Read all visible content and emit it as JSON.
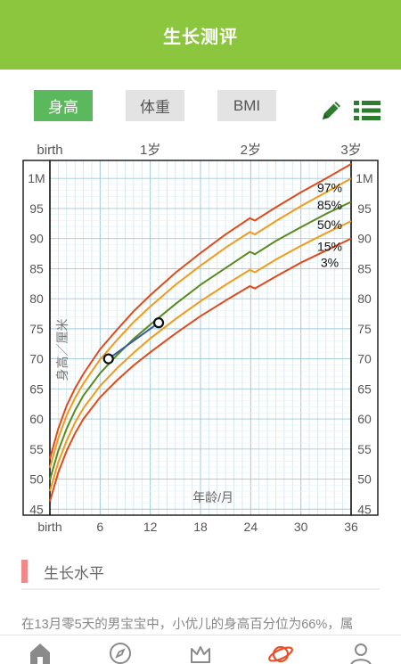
{
  "app": {
    "title": "生长测评"
  },
  "tabs": [
    {
      "label": "身高",
      "active": true
    },
    {
      "label": "体重",
      "active": false
    },
    {
      "label": "BMI",
      "active": false
    }
  ],
  "icons": {
    "edit": "pencil-icon",
    "list": "list-icon"
  },
  "colors": {
    "brand": "#8cc63f",
    "active_tab": "#5cb85c",
    "p97": "#e04a1a",
    "p85": "#f29a1a",
    "p50": "#5a8a1e",
    "p15": "#f29a1a",
    "p3": "#e04a1a",
    "child_line": "#3a5aa8",
    "accent_bar": "#f08a8a"
  },
  "chart_data": {
    "type": "line",
    "ylabel": "身高／厘米",
    "xlabel": "年龄/月",
    "top_ticks": [
      "birth",
      "1岁",
      "2岁",
      "3岁"
    ],
    "bottom_ticks": [
      "birth",
      "6",
      "12",
      "18",
      "24",
      "30",
      "36"
    ],
    "y_tick_labels": [
      "1M",
      "95",
      "90",
      "85",
      "80",
      "75",
      "70",
      "65",
      "60",
      "55",
      "50",
      "45"
    ],
    "xlim": [
      0,
      36
    ],
    "ylim": [
      44,
      103
    ],
    "grid": true,
    "series": [
      {
        "name": "97%",
        "x": [
          0,
          1,
          2,
          3,
          4,
          6,
          8,
          10,
          12,
          15,
          18,
          21,
          23.9,
          24.5,
          27,
          30,
          33,
          36
        ],
        "y": [
          53.4,
          58.4,
          62.2,
          65.1,
          67.5,
          71.6,
          74.8,
          77.9,
          80.6,
          84.3,
          87.6,
          90.7,
          93.4,
          93.0,
          95.2,
          97.7,
          100.0,
          102.4
        ]
      },
      {
        "name": "85%",
        "x": [
          0,
          1,
          2,
          3,
          4,
          6,
          8,
          10,
          12,
          15,
          18,
          21,
          23.9,
          24.5,
          27,
          30,
          33,
          36
        ],
        "y": [
          51.9,
          56.8,
          60.6,
          63.5,
          65.9,
          69.9,
          73.1,
          76.1,
          78.7,
          82.3,
          85.5,
          88.5,
          91.1,
          90.7,
          92.9,
          95.4,
          97.7,
          100.0
        ]
      },
      {
        "name": "50%",
        "x": [
          0,
          1,
          2,
          3,
          4,
          6,
          8,
          10,
          12,
          15,
          18,
          21,
          23.9,
          24.5,
          27,
          30,
          33,
          36
        ],
        "y": [
          49.9,
          54.7,
          58.4,
          61.4,
          63.9,
          67.6,
          70.6,
          73.3,
          75.7,
          79.1,
          82.3,
          85.1,
          87.8,
          87.4,
          89.6,
          91.9,
          94.1,
          96.1
        ]
      },
      {
        "name": "15%",
        "x": [
          0,
          1,
          2,
          3,
          4,
          6,
          8,
          10,
          12,
          15,
          18,
          21,
          23.9,
          24.5,
          27,
          30,
          33,
          36
        ],
        "y": [
          48.0,
          52.8,
          56.4,
          59.4,
          61.8,
          65.5,
          68.4,
          71.0,
          73.4,
          76.6,
          79.6,
          82.3,
          84.8,
          84.4,
          86.5,
          88.8,
          90.9,
          92.9
        ]
      },
      {
        "name": "3%",
        "x": [
          0,
          1,
          2,
          3,
          4,
          6,
          8,
          10,
          12,
          15,
          18,
          21,
          23.9,
          24.5,
          27,
          30,
          33,
          36
        ],
        "y": [
          46.3,
          51.1,
          54.7,
          57.6,
          60.0,
          63.6,
          66.4,
          68.9,
          71.1,
          74.2,
          77.1,
          79.7,
          82.1,
          81.7,
          83.7,
          86.0,
          88.0,
          90.0
        ]
      },
      {
        "name": "",
        "x": [
          7,
          13
        ],
        "y": [
          70.0,
          76.0
        ]
      }
    ]
  },
  "section": {
    "title": "生长水平"
  },
  "summary": {
    "text": "在13月零5天的男宝宝中，小优儿的身高百分位为66%，属"
  },
  "bottom_nav": [
    {
      "icon": "home-icon"
    },
    {
      "icon": "compass-icon"
    },
    {
      "icon": "crown-icon"
    },
    {
      "icon": "planet-icon"
    },
    {
      "icon": "user-icon"
    }
  ]
}
